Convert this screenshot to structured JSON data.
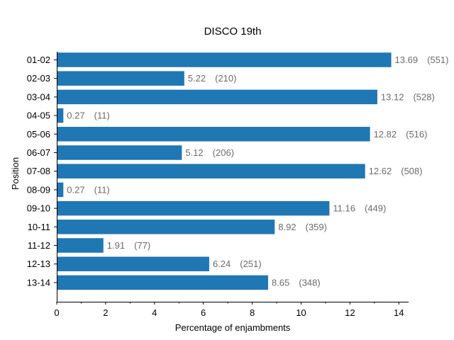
{
  "chart_data": {
    "type": "bar",
    "orientation": "horizontal",
    "title": "DISCO 19th",
    "xlabel": "Percentage of enjambments",
    "ylabel": "Position",
    "xlim": [
      0,
      14.4
    ],
    "xticks": [
      0,
      2,
      4,
      6,
      8,
      10,
      12,
      14
    ],
    "bar_color": "#1f77b4",
    "label_color": "#6b6b6b",
    "grid": false,
    "categories": [
      "01-02",
      "02-03",
      "03-04",
      "04-05",
      "05-06",
      "06-07",
      "07-08",
      "08-09",
      "09-10",
      "10-11",
      "11-12",
      "12-13",
      "13-14"
    ],
    "values": [
      13.69,
      5.22,
      13.12,
      0.27,
      12.82,
      5.12,
      12.62,
      0.27,
      11.16,
      8.92,
      1.91,
      6.24,
      8.65
    ],
    "value_labels": [
      "13.69",
      "5.22",
      "13.12",
      "0.27",
      "12.82",
      "5.12",
      "12.62",
      "0.27",
      "11.16",
      "8.92",
      "1.91",
      "6.24",
      "8.65"
    ],
    "count_labels": [
      "(551)",
      "(210)",
      "(528)",
      "(11)",
      "(516)",
      "(206)",
      "(508)",
      "(11)",
      "(449)",
      "(359)",
      "(77)",
      "(251)",
      "(348)"
    ]
  }
}
